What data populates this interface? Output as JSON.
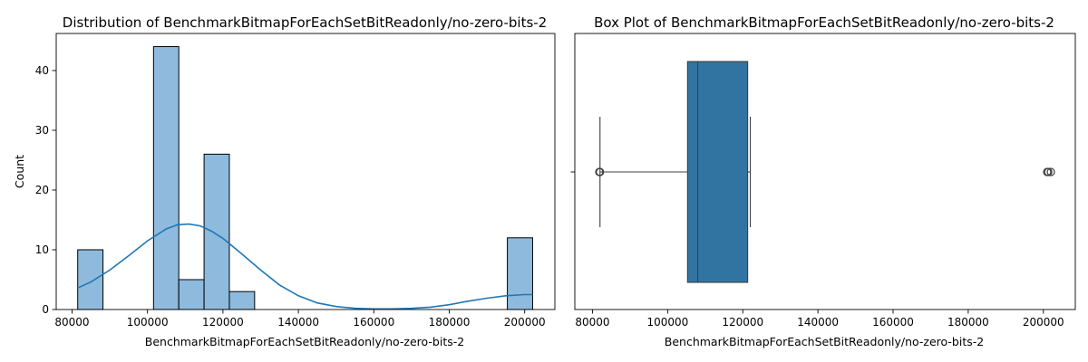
{
  "chart_data": [
    {
      "type": "histogram",
      "title": "Distribution of BenchmarkBitmapForEachSetBitReadonly/no-zero-bits-2",
      "xlabel": "BenchmarkBitmapForEachSetBitReadonly/no-zero-bits-2",
      "ylabel": "Count",
      "xlim": [
        75800,
        208000
      ],
      "ylim": [
        0,
        46.2
      ],
      "xticks": [
        80000,
        100000,
        120000,
        140000,
        160000,
        180000,
        200000
      ],
      "xtick_labels": [
        "80000",
        "100000",
        "120000",
        "140000",
        "160000",
        "180000",
        "200000"
      ],
      "yticks": [
        0,
        10,
        20,
        30,
        40
      ],
      "ytick_labels": [
        "0",
        "10",
        "20",
        "30",
        "40"
      ],
      "bins": [
        {
          "x0": 81500,
          "x1": 88200,
          "count": 10
        },
        {
          "x0": 101600,
          "x1": 108300,
          "count": 44
        },
        {
          "x0": 108300,
          "x1": 115000,
          "count": 5
        },
        {
          "x0": 115000,
          "x1": 121700,
          "count": 26
        },
        {
          "x0": 121700,
          "x1": 128400,
          "count": 3
        },
        {
          "x0": 195400,
          "x1": 202100,
          "count": 12
        }
      ],
      "kde": {
        "x": [
          81500,
          85000,
          90000,
          95000,
          100000,
          105000,
          108000,
          111000,
          114000,
          117000,
          120000,
          125000,
          130000,
          135000,
          140000,
          145000,
          150000,
          155000,
          160000,
          165000,
          170000,
          175000,
          180000,
          185000,
          190000,
          195000,
          200000,
          202100
        ],
        "y": [
          3.6,
          4.6,
          6.6,
          9.0,
          11.5,
          13.5,
          14.2,
          14.3,
          14.0,
          13.1,
          11.9,
          9.3,
          6.6,
          4.1,
          2.3,
          1.1,
          0.5,
          0.2,
          0.1,
          0.1,
          0.2,
          0.4,
          0.8,
          1.4,
          1.9,
          2.3,
          2.5,
          2.5
        ]
      }
    },
    {
      "type": "box",
      "title": "Box Plot of BenchmarkBitmapForEachSetBitReadonly/no-zero-bits-2",
      "xlabel": "BenchmarkBitmapForEachSetBitReadonly/no-zero-bits-2",
      "xlim": [
        75300,
        208500
      ],
      "xticks": [
        80000,
        100000,
        120000,
        140000,
        160000,
        180000,
        200000
      ],
      "xtick_labels": [
        "80000",
        "100000",
        "120000",
        "140000",
        "160000",
        "180000",
        "200000"
      ],
      "whisker_low": 82000,
      "q1": 105300,
      "median": 108000,
      "q3": 121300,
      "whisker_high": 122000,
      "fliers": [
        81800,
        82000,
        201000,
        201300,
        202000
      ],
      "color": "#3274a1"
    }
  ]
}
